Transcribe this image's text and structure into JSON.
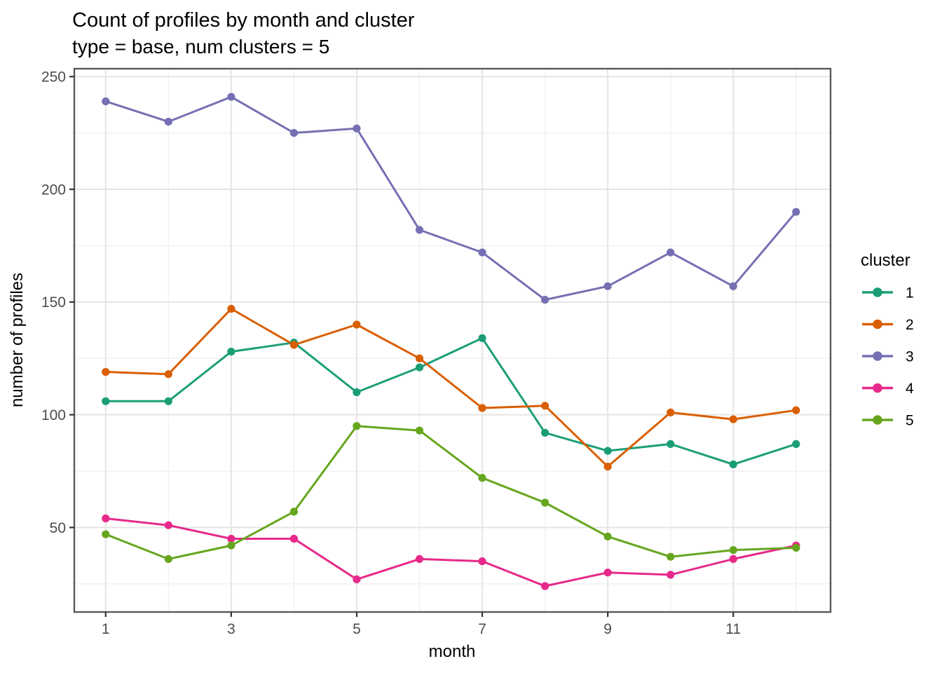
{
  "styles": {
    "background": "#ffffff",
    "panel_border": "#595959",
    "grid_major": "#e5e5e5",
    "grid_minor": "#f2f2f2",
    "tick_mark": "#333333",
    "axis_text": "#4d4d4d",
    "title_text": "#000000"
  },
  "chart_data": {
    "type": "line",
    "title": "Count of profiles by month and cluster",
    "subtitle": "type = base, num clusters = 5",
    "xlabel": "month",
    "ylabel": "number of profiles",
    "legend_title": "cluster",
    "legend_position": "right",
    "grid": true,
    "x": [
      1,
      2,
      3,
      4,
      5,
      6,
      7,
      8,
      9,
      10,
      11,
      12
    ],
    "x_ticks": [
      1,
      3,
      5,
      7,
      9,
      11
    ],
    "x_minor_ticks": [
      2,
      4,
      6,
      8,
      10,
      12
    ],
    "y_ticks": [
      50,
      100,
      150,
      200,
      250
    ],
    "y_minor_ticks": [
      25,
      75,
      125,
      175,
      225
    ],
    "xlim": [
      0.5,
      12.55
    ],
    "ylim": [
      12.5,
      253.5
    ],
    "series": [
      {
        "name": "1",
        "color": "#1B9E77",
        "values": [
          106,
          106,
          128,
          132,
          110,
          121,
          134,
          92,
          84,
          87,
          78,
          87
        ]
      },
      {
        "name": "2",
        "color": "#D95F02",
        "values": [
          119,
          118,
          147,
          131,
          140,
          125,
          103,
          104,
          77,
          101,
          98,
          102
        ]
      },
      {
        "name": "3",
        "color": "#7570B3",
        "values": [
          239,
          230,
          241,
          225,
          227,
          182,
          172,
          151,
          157,
          172,
          157,
          190
        ]
      },
      {
        "name": "4",
        "color": "#E7298A",
        "values": [
          54,
          51,
          45,
          45,
          27,
          36,
          35,
          24,
          30,
          29,
          36,
          42
        ]
      },
      {
        "name": "5",
        "color": "#66A61E",
        "values": [
          47,
          36,
          42,
          57,
          95,
          93,
          72,
          61,
          46,
          37,
          40,
          41
        ]
      }
    ]
  }
}
